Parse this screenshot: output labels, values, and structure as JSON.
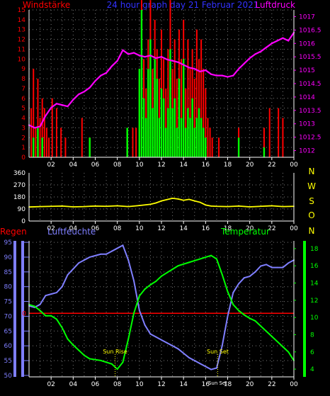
{
  "colors": {
    "background": "#000000",
    "axis": "#ffffff",
    "grid": "#7a7a7a",
    "wind_gust": "#ff0000",
    "wind_speed": "#00ff00",
    "pressure": "#ff00ff",
    "direction": "#ffff00",
    "rain": "#ff0000",
    "humidity": "#7f7fff",
    "temperature": "#00ff00",
    "sun_label": "#ffff00"
  },
  "chart_data": [
    {
      "type": "bar",
      "name": "wind-and-pressure",
      "title": "24 hour graph day  21 Februar 2021",
      "left_label": "Windstärke",
      "right_label": "Luftdruck",
      "x_ticks": [
        "02",
        "04",
        "06",
        "08",
        "10",
        "12",
        "14",
        "16",
        "18",
        "20",
        "22",
        "00"
      ],
      "x_range": [
        0,
        24
      ],
      "y_left_ticks": [
        "0",
        "1",
        "2",
        "3",
        "4",
        "5",
        "6",
        "7",
        "8",
        "9",
        "10",
        "11",
        "12",
        "13",
        "14",
        "15"
      ],
      "y_left_range": [
        0,
        15
      ],
      "y_right_ticks": [
        "1012",
        "1012.5",
        "1013",
        "1013.5",
        "1014",
        "1014.5",
        "1015",
        "1015.5",
        "1016",
        "1016.5",
        "1017"
      ],
      "y_right_range": [
        1011.75,
        1017.25
      ],
      "wind_gust": [
        [
          0.2,
          5
        ],
        [
          0.4,
          9
        ],
        [
          0.6,
          3
        ],
        [
          0.8,
          8
        ],
        [
          1.0,
          4
        ],
        [
          1.2,
          6
        ],
        [
          1.4,
          5
        ],
        [
          1.6,
          3
        ],
        [
          1.8,
          2
        ],
        [
          2.1,
          6
        ],
        [
          2.5,
          5
        ],
        [
          2.9,
          3
        ],
        [
          3.3,
          2
        ],
        [
          4.8,
          4
        ],
        [
          5.5,
          2
        ],
        [
          8.9,
          2
        ],
        [
          9.4,
          3
        ],
        [
          9.7,
          3
        ],
        [
          10.0,
          8
        ],
        [
          10.2,
          16
        ],
        [
          10.4,
          10
        ],
        [
          10.6,
          7
        ],
        [
          10.8,
          12
        ],
        [
          11.0,
          16
        ],
        [
          11.2,
          9
        ],
        [
          11.4,
          14
        ],
        [
          11.6,
          11
        ],
        [
          11.8,
          8
        ],
        [
          12.0,
          13
        ],
        [
          12.2,
          10
        ],
        [
          12.4,
          7
        ],
        [
          12.6,
          11
        ],
        [
          12.8,
          16
        ],
        [
          13.0,
          9
        ],
        [
          13.2,
          12
        ],
        [
          13.4,
          8
        ],
        [
          13.6,
          13
        ],
        [
          13.8,
          10
        ],
        [
          14.0,
          14
        ],
        [
          14.2,
          7
        ],
        [
          14.4,
          12
        ],
        [
          14.6,
          9
        ],
        [
          14.8,
          11
        ],
        [
          15.0,
          8
        ],
        [
          15.2,
          13
        ],
        [
          15.4,
          10
        ],
        [
          15.6,
          12
        ],
        [
          15.8,
          9
        ],
        [
          16.0,
          7
        ],
        [
          16.2,
          4
        ],
        [
          16.4,
          3
        ],
        [
          16.6,
          2
        ],
        [
          17.2,
          2
        ],
        [
          19.0,
          3
        ],
        [
          21.3,
          3
        ],
        [
          21.8,
          5
        ],
        [
          22.6,
          5
        ],
        [
          23.0,
          4
        ]
      ],
      "wind_speed": [
        [
          0.4,
          2
        ],
        [
          0.8,
          3
        ],
        [
          1.2,
          2
        ],
        [
          5.5,
          2
        ],
        [
          8.9,
          3
        ],
        [
          10.0,
          9
        ],
        [
          10.2,
          15
        ],
        [
          10.4,
          6
        ],
        [
          10.6,
          4
        ],
        [
          10.8,
          9
        ],
        [
          11.0,
          12
        ],
        [
          11.2,
          5
        ],
        [
          11.4,
          10
        ],
        [
          11.6,
          8
        ],
        [
          11.8,
          4
        ],
        [
          12.0,
          7
        ],
        [
          12.2,
          6
        ],
        [
          12.4,
          3
        ],
        [
          12.6,
          5
        ],
        [
          12.8,
          11
        ],
        [
          13.0,
          5
        ],
        [
          13.2,
          6
        ],
        [
          13.4,
          3
        ],
        [
          13.6,
          8
        ],
        [
          13.8,
          4
        ],
        [
          14.0,
          10
        ],
        [
          14.2,
          3
        ],
        [
          14.4,
          5
        ],
        [
          14.6,
          4
        ],
        [
          14.8,
          6
        ],
        [
          15.0,
          3
        ],
        [
          15.2,
          4
        ],
        [
          15.4,
          5
        ],
        [
          15.6,
          4
        ],
        [
          15.8,
          3
        ],
        [
          16.0,
          2
        ],
        [
          19.0,
          2
        ],
        [
          21.3,
          1
        ]
      ],
      "pressure": [
        [
          0.0,
          1012.95
        ],
        [
          0.5,
          1012.85
        ],
        [
          1.0,
          1012.9
        ],
        [
          1.5,
          1013.3
        ],
        [
          2.0,
          1013.6
        ],
        [
          2.5,
          1013.75
        ],
        [
          3.0,
          1013.7
        ],
        [
          3.5,
          1013.65
        ],
        [
          4.0,
          1013.9
        ],
        [
          4.5,
          1014.1
        ],
        [
          5.0,
          1014.2
        ],
        [
          5.5,
          1014.35
        ],
        [
          6.0,
          1014.6
        ],
        [
          6.5,
          1014.8
        ],
        [
          7.0,
          1014.9
        ],
        [
          7.5,
          1015.15
        ],
        [
          8.0,
          1015.35
        ],
        [
          8.5,
          1015.75
        ],
        [
          9.0,
          1015.6
        ],
        [
          9.5,
          1015.65
        ],
        [
          10.0,
          1015.55
        ],
        [
          10.5,
          1015.5
        ],
        [
          11.0,
          1015.55
        ],
        [
          11.5,
          1015.45
        ],
        [
          12.0,
          1015.5
        ],
        [
          12.5,
          1015.4
        ],
        [
          13.0,
          1015.35
        ],
        [
          13.5,
          1015.3
        ],
        [
          14.0,
          1015.2
        ],
        [
          14.5,
          1015.1
        ],
        [
          15.0,
          1015.05
        ],
        [
          15.5,
          1014.95
        ],
        [
          16.0,
          1015.0
        ],
        [
          16.5,
          1014.85
        ],
        [
          17.0,
          1014.8
        ],
        [
          17.5,
          1014.8
        ],
        [
          18.0,
          1014.75
        ],
        [
          18.5,
          1014.8
        ],
        [
          19.0,
          1015.05
        ],
        [
          19.5,
          1015.25
        ],
        [
          20.0,
          1015.45
        ],
        [
          20.5,
          1015.6
        ],
        [
          21.0,
          1015.7
        ],
        [
          21.5,
          1015.85
        ],
        [
          22.0,
          1016.0
        ],
        [
          22.5,
          1016.1
        ],
        [
          23.0,
          1016.2
        ],
        [
          23.5,
          1016.1
        ],
        [
          24.0,
          1016.4
        ]
      ]
    },
    {
      "type": "line",
      "name": "wind-direction",
      "x_ticks": [
        "02",
        "04",
        "06",
        "08",
        "10",
        "12",
        "14",
        "16",
        "18",
        "20",
        "22",
        "00"
      ],
      "x_range": [
        0,
        24
      ],
      "y_ticks": [
        "0",
        "90",
        "180",
        "270",
        "360"
      ],
      "y_range": [
        0,
        360
      ],
      "right_labels": [
        "N",
        "W",
        "S",
        "O",
        "N"
      ],
      "direction": [
        [
          0,
          105
        ],
        [
          1,
          108
        ],
        [
          2,
          110
        ],
        [
          3,
          112
        ],
        [
          4,
          106
        ],
        [
          5,
          108
        ],
        [
          6,
          112
        ],
        [
          7,
          110
        ],
        [
          8,
          114
        ],
        [
          9,
          108
        ],
        [
          10,
          116
        ],
        [
          11,
          125
        ],
        [
          11.5,
          135
        ],
        [
          12,
          150
        ],
        [
          12.5,
          160
        ],
        [
          13,
          170
        ],
        [
          13.5,
          165
        ],
        [
          14,
          155
        ],
        [
          14.5,
          162
        ],
        [
          15,
          150
        ],
        [
          15.5,
          140
        ],
        [
          16,
          120
        ],
        [
          16.5,
          112
        ],
        [
          17,
          110
        ],
        [
          18,
          108
        ],
        [
          19,
          112
        ],
        [
          20,
          106
        ],
        [
          21,
          110
        ],
        [
          22,
          114
        ],
        [
          23,
          108
        ],
        [
          24,
          110
        ]
      ]
    },
    {
      "type": "line",
      "name": "climate",
      "left_label": "Regen",
      "humidity_label": "Luftfeuchte",
      "temperature_label": "Temperatur",
      "x_ticks": [
        "02",
        "04",
        "06",
        "08",
        "10",
        "12",
        "14",
        "16",
        "18",
        "20",
        "22",
        "00"
      ],
      "x_range": [
        0,
        24
      ],
      "y_left_ticks": [
        "50",
        "55",
        "60",
        "65",
        "70",
        "75",
        "80",
        "85",
        "90",
        "95"
      ],
      "y_left_range": [
        49.5,
        95.5
      ],
      "rain_tick": "0",
      "rain_value": 0,
      "y_right_ticks": [
        "4",
        "6",
        "8",
        "10",
        "12",
        "14",
        "16",
        "18"
      ],
      "y_right_range": [
        3.1,
        18.9
      ],
      "sun_rise_label": "Sun Rise",
      "sun_set_label": "Sun Set",
      "sun_rise_hour": 7.8,
      "sun_set_hour": 17.1,
      "sun_set_axis_label": "Sun Set",
      "humidity": [
        [
          0,
          73.5
        ],
        [
          0.5,
          73
        ],
        [
          1,
          74
        ],
        [
          1.5,
          77
        ],
        [
          2,
          77.5
        ],
        [
          2.5,
          78
        ],
        [
          3,
          80
        ],
        [
          3.5,
          84
        ],
        [
          4,
          86
        ],
        [
          4.5,
          88
        ],
        [
          5,
          89
        ],
        [
          5.5,
          90
        ],
        [
          6,
          90.5
        ],
        [
          6.5,
          91
        ],
        [
          7,
          91
        ],
        [
          7.5,
          92
        ],
        [
          8,
          93
        ],
        [
          8.5,
          94
        ],
        [
          9,
          89
        ],
        [
          9.5,
          82
        ],
        [
          10,
          72
        ],
        [
          10.5,
          67
        ],
        [
          11,
          64
        ],
        [
          11.5,
          63
        ],
        [
          12,
          62
        ],
        [
          12.5,
          61
        ],
        [
          13,
          60
        ],
        [
          13.5,
          59
        ],
        [
          14,
          57.5
        ],
        [
          14.5,
          56
        ],
        [
          15,
          55
        ],
        [
          15.5,
          54
        ],
        [
          16,
          53
        ],
        [
          16.5,
          52
        ],
        [
          17,
          52.5
        ],
        [
          17.5,
          60
        ],
        [
          18,
          70
        ],
        [
          18.5,
          78
        ],
        [
          19,
          81
        ],
        [
          19.5,
          83
        ],
        [
          20,
          83.5
        ],
        [
          20.5,
          85
        ],
        [
          21,
          87
        ],
        [
          21.5,
          87.5
        ],
        [
          22,
          86.5
        ],
        [
          22.5,
          86.5
        ],
        [
          23,
          86.5
        ],
        [
          23.5,
          88
        ],
        [
          24,
          89
        ]
      ],
      "temperature": [
        [
          0,
          11.5
        ],
        [
          0.5,
          11.3
        ],
        [
          1,
          10.8
        ],
        [
          1.5,
          10.2
        ],
        [
          2,
          10.2
        ],
        [
          2.5,
          9.8
        ],
        [
          3,
          8.8
        ],
        [
          3.5,
          7.5
        ],
        [
          4,
          6.8
        ],
        [
          4.5,
          6.2
        ],
        [
          5,
          5.6
        ],
        [
          5.5,
          5.2
        ],
        [
          6,
          5.1
        ],
        [
          6.5,
          5.0
        ],
        [
          7,
          4.8
        ],
        [
          7.5,
          4.6
        ],
        [
          8,
          4.0
        ],
        [
          8.5,
          4.8
        ],
        [
          9,
          7.5
        ],
        [
          9.5,
          10.5
        ],
        [
          10,
          12.5
        ],
        [
          10.5,
          13.3
        ],
        [
          11,
          13.8
        ],
        [
          11.5,
          14.2
        ],
        [
          12,
          14.8
        ],
        [
          12.5,
          15.2
        ],
        [
          13,
          15.6
        ],
        [
          13.5,
          16.0
        ],
        [
          14,
          16.2
        ],
        [
          14.5,
          16.4
        ],
        [
          15,
          16.6
        ],
        [
          15.5,
          16.8
        ],
        [
          16,
          17.0
        ],
        [
          16.5,
          17.2
        ],
        [
          17,
          16.8
        ],
        [
          17.5,
          15.0
        ],
        [
          18,
          13.0
        ],
        [
          18.5,
          11.5
        ],
        [
          19,
          10.8
        ],
        [
          19.5,
          10.3
        ],
        [
          20,
          9.9
        ],
        [
          20.5,
          9.6
        ],
        [
          21,
          9.0
        ],
        [
          21.5,
          8.4
        ],
        [
          22,
          7.8
        ],
        [
          22.5,
          7.2
        ],
        [
          23,
          6.6
        ],
        [
          23.5,
          6.0
        ],
        [
          24,
          5.0
        ]
      ]
    }
  ]
}
